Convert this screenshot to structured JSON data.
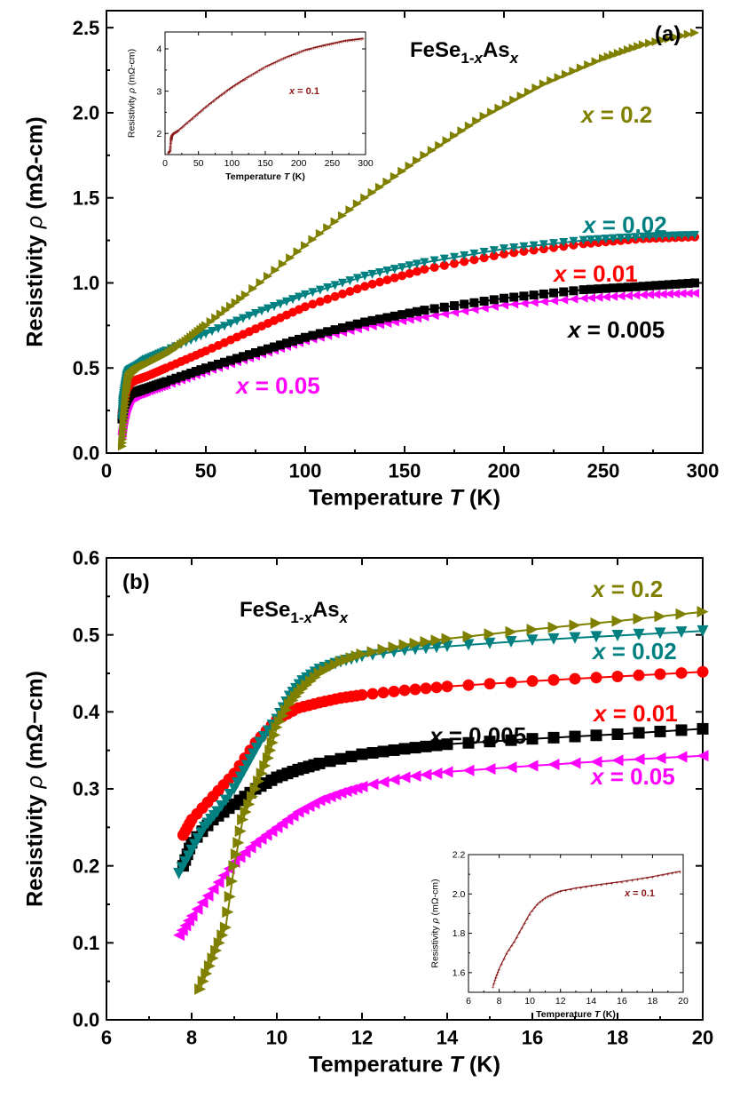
{
  "chart_data": [
    {
      "type": "line",
      "panel_label": "(a)",
      "formula": {
        "base": "FeSe",
        "sub1": "1-",
        "subx": "x",
        "mid": "As",
        "sub2": "x"
      },
      "xlabel": {
        "pre": "Temperature ",
        "var": "T",
        "post": " (K)"
      },
      "ylabel": {
        "pre": "Resistivity ",
        "var": "ρ",
        "post": " (mΩ-cm)"
      },
      "xlim": [
        0,
        300
      ],
      "ylim": [
        0,
        2.6
      ],
      "xticks": [
        "0",
        "50",
        "100",
        "150",
        "200",
        "250",
        "300"
      ],
      "yticks": [
        "0.0",
        "0.5",
        "1.0",
        "1.5",
        "2.0",
        "2.5"
      ],
      "grid": false,
      "series": [
        {
          "name": "x = 0.2",
          "var": "x",
          "eq": " = 0.2",
          "color": "#808000",
          "marker": "triangle-right",
          "x": [
            8,
            9,
            10,
            11,
            12,
            15,
            20,
            30,
            40,
            50,
            70,
            100,
            130,
            160,
            190,
            220,
            250,
            270,
            296
          ],
          "y": [
            0.04,
            0.2,
            0.35,
            0.44,
            0.46,
            0.49,
            0.52,
            0.58,
            0.66,
            0.75,
            0.93,
            1.22,
            1.5,
            1.75,
            1.98,
            2.17,
            2.32,
            2.4,
            2.47
          ]
        },
        {
          "name": "x = 0.02",
          "var": "x",
          "eq": " = 0.02",
          "color": "#008080",
          "marker": "triangle-down",
          "x": [
            7.7,
            8,
            9,
            10,
            11,
            12,
            15,
            20,
            30,
            50,
            75,
            100,
            130,
            160,
            200,
            240,
            270,
            296
          ],
          "y": [
            0.19,
            0.3,
            0.38,
            0.45,
            0.48,
            0.49,
            0.51,
            0.55,
            0.6,
            0.7,
            0.82,
            0.93,
            1.04,
            1.12,
            1.2,
            1.25,
            1.27,
            1.28
          ]
        },
        {
          "name": "x = 0.01",
          "var": "x",
          "eq": " = 0.01",
          "color": "#ff0000",
          "marker": "circle",
          "x": [
            7.8,
            9,
            10,
            12,
            15,
            20,
            30,
            50,
            75,
            100,
            130,
            160,
            200,
            240,
            270,
            296
          ],
          "y": [
            0.24,
            0.32,
            0.37,
            0.41,
            0.43,
            0.45,
            0.5,
            0.6,
            0.73,
            0.86,
            0.98,
            1.08,
            1.17,
            1.23,
            1.26,
            1.27
          ]
        },
        {
          "name": "x = 0.005",
          "var": "x",
          "eq": " = 0.005",
          "color": "#000000",
          "marker": "square",
          "x": [
            7.8,
            9,
            10,
            12,
            15,
            20,
            30,
            50,
            75,
            100,
            130,
            160,
            200,
            240,
            270,
            296
          ],
          "y": [
            0.2,
            0.28,
            0.31,
            0.35,
            0.36,
            0.38,
            0.42,
            0.5,
            0.59,
            0.68,
            0.77,
            0.84,
            0.91,
            0.96,
            0.98,
            1.0
          ]
        },
        {
          "name": "x = 0.05",
          "var": "x",
          "eq": " = 0.05",
          "color": "#ff00ff",
          "marker": "triangle-left",
          "x": [
            7.7,
            8,
            9,
            10,
            12,
            15,
            20,
            30,
            50,
            75,
            100,
            130,
            160,
            200,
            240,
            270,
            296
          ],
          "y": [
            0.11,
            0.14,
            0.21,
            0.26,
            0.32,
            0.34,
            0.36,
            0.4,
            0.48,
            0.57,
            0.66,
            0.74,
            0.8,
            0.87,
            0.91,
            0.93,
            0.94
          ]
        }
      ],
      "inset": {
        "xlabel": {
          "pre": "Temperature ",
          "var": "T",
          "post": " (K)"
        },
        "ylabel": {
          "pre": "Resistivity ",
          "var": "ρ",
          "post": " (mΩ-cm)"
        },
        "xlim": [
          0,
          300
        ],
        "ylim": [
          1.5,
          4.4
        ],
        "xticks": [
          "0",
          "50",
          "100",
          "150",
          "200",
          "250",
          "300"
        ],
        "yticks": [
          "2",
          "3",
          "4"
        ],
        "series": [
          {
            "name": "x = 0.1",
            "var": "x",
            "eq": " = 0.1",
            "color": "#8b1a1a",
            "x": [
              5,
              7.5,
              9,
              10,
              12,
              20,
              40,
              60,
              80,
              100,
              120,
              150,
              180,
              210,
              240,
              270,
              296
            ],
            "y": [
              1.55,
              1.6,
              1.85,
              1.95,
              2.0,
              2.08,
              2.35,
              2.62,
              2.87,
              3.1,
              3.3,
              3.58,
              3.8,
              3.98,
              4.1,
              4.2,
              4.25
            ]
          }
        ]
      }
    },
    {
      "type": "line",
      "panel_label": "(b)",
      "formula": {
        "base": "FeSe",
        "sub1": "1-",
        "subx": "x",
        "mid": "As",
        "sub2": "x"
      },
      "xlabel": {
        "pre": "Temperature ",
        "var": "T",
        "post": " (K)"
      },
      "ylabel": {
        "pre": "Resistivity ",
        "var": "ρ",
        "post": " (mΩ−cm)"
      },
      "xlim": [
        6,
        20
      ],
      "ylim": [
        0,
        0.6
      ],
      "xticks": [
        "6",
        "8",
        "10",
        "12",
        "14",
        "16",
        "18",
        "20"
      ],
      "yticks": [
        "0.0",
        "0.1",
        "0.2",
        "0.3",
        "0.4",
        "0.5",
        "0.6"
      ],
      "grid": false,
      "series": [
        {
          "name": "x = 0.2",
          "var": "x",
          "eq": " = 0.2",
          "color": "#808000",
          "marker": "triangle-right",
          "x": [
            8.2,
            8.5,
            8.8,
            9.0,
            9.2,
            9.5,
            9.8,
            10.0,
            10.3,
            10.6,
            11.0,
            11.5,
            12.0,
            13.0,
            14.0,
            16.0,
            18.0,
            20.0
          ],
          "y": [
            0.04,
            0.08,
            0.12,
            0.2,
            0.26,
            0.3,
            0.34,
            0.38,
            0.41,
            0.43,
            0.45,
            0.465,
            0.475,
            0.487,
            0.495,
            0.507,
            0.518,
            0.53
          ]
        },
        {
          "name": "x = 0.02",
          "var": "x",
          "eq": " = 0.02",
          "color": "#008080",
          "marker": "triangle-down",
          "x": [
            7.7,
            8.0,
            8.3,
            8.6,
            9.0,
            9.3,
            9.6,
            10.0,
            10.3,
            10.6,
            11.0,
            11.5,
            12.0,
            13.0,
            14.0,
            16.0,
            18.0,
            20.0
          ],
          "y": [
            0.19,
            0.22,
            0.25,
            0.27,
            0.3,
            0.33,
            0.36,
            0.39,
            0.42,
            0.44,
            0.455,
            0.465,
            0.472,
            0.48,
            0.485,
            0.493,
            0.499,
            0.505
          ]
        },
        {
          "name": "x = 0.01",
          "var": "x",
          "eq": " = 0.01",
          "color": "#ff0000",
          "marker": "circle",
          "x": [
            7.8,
            8.0,
            8.5,
            9.0,
            9.5,
            10.0,
            10.5,
            11.0,
            11.5,
            12.0,
            13.0,
            14.0,
            16.0,
            18.0,
            20.0
          ],
          "y": [
            0.24,
            0.26,
            0.29,
            0.32,
            0.36,
            0.39,
            0.405,
            0.412,
            0.418,
            0.422,
            0.428,
            0.433,
            0.44,
            0.446,
            0.452
          ]
        },
        {
          "name": "x = 0.005",
          "var": "x",
          "eq": " = 0.005",
          "color": "#000000",
          "marker": "square",
          "x": [
            7.8,
            8.0,
            8.5,
            9.0,
            9.5,
            10.0,
            10.5,
            11.0,
            12.0,
            13.0,
            14.0,
            16.0,
            18.0,
            20.0
          ],
          "y": [
            0.2,
            0.23,
            0.26,
            0.28,
            0.3,
            0.315,
            0.325,
            0.333,
            0.345,
            0.352,
            0.358,
            0.365,
            0.371,
            0.378
          ]
        },
        {
          "name": "x = 0.05",
          "var": "x",
          "eq": " = 0.05",
          "color": "#ff00ff",
          "marker": "triangle-left",
          "x": [
            7.7,
            8.0,
            8.5,
            9.0,
            9.5,
            10.0,
            10.5,
            11.0,
            11.5,
            12.0,
            13.0,
            14.0,
            16.0,
            18.0,
            20.0
          ],
          "y": [
            0.11,
            0.135,
            0.17,
            0.205,
            0.23,
            0.25,
            0.27,
            0.285,
            0.295,
            0.303,
            0.315,
            0.322,
            0.33,
            0.337,
            0.343
          ]
        }
      ],
      "inset": {
        "xlabel": {
          "pre": "Temperature ",
          "var": "T",
          "post": " (K)"
        },
        "ylabel": {
          "pre": "Resistivity ",
          "var": "ρ",
          "post": " (mΩ-cm)"
        },
        "xlim": [
          6,
          20
        ],
        "ylim": [
          1.5,
          2.2
        ],
        "xticks": [
          "6",
          "8",
          "10",
          "12",
          "14",
          "16",
          "18",
          "20"
        ],
        "yticks": [
          "1.6",
          "1.8",
          "2.0",
          "2.2"
        ],
        "series": [
          {
            "name": "x = 0.1",
            "var": "x",
            "eq": " = 0.1",
            "color": "#8b1a1a",
            "x": [
              7.6,
              7.8,
              8.0,
              8.5,
              9.0,
              9.5,
              10.0,
              10.5,
              11.0,
              11.5,
              12.0,
              13.0,
              14.0,
              15.0,
              16.0,
              17.0,
              18.0,
              19.0,
              19.8
            ],
            "y": [
              1.53,
              1.58,
              1.62,
              1.7,
              1.76,
              1.83,
              1.9,
              1.95,
              1.98,
              2.0,
              2.015,
              2.03,
              2.042,
              2.053,
              2.063,
              2.075,
              2.088,
              2.103,
              2.115
            ]
          }
        ]
      }
    }
  ]
}
